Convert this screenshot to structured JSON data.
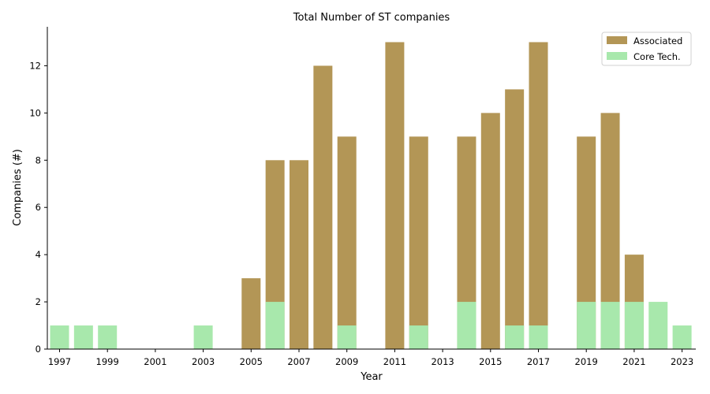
{
  "chart_data": {
    "type": "bar",
    "title": "Total Number of ST companies",
    "xlabel": "Year",
    "ylabel": "Companies (#)",
    "ylim": [
      0,
      13.65
    ],
    "yticks": [
      0,
      2,
      4,
      6,
      8,
      10,
      12
    ],
    "xticks": [
      1997,
      1999,
      2001,
      2003,
      2005,
      2007,
      2009,
      2011,
      2013,
      2015,
      2017,
      2019,
      2021,
      2023
    ],
    "legend_position": "top-right",
    "categories": [
      1997,
      1998,
      1999,
      2000,
      2001,
      2002,
      2003,
      2004,
      2005,
      2006,
      2007,
      2008,
      2009,
      2010,
      2011,
      2012,
      2013,
      2014,
      2015,
      2016,
      2017,
      2018,
      2019,
      2020,
      2021,
      2022,
      2023
    ],
    "series": [
      {
        "name": "Associated",
        "color": "#b39656",
        "values": [
          0,
          0,
          0,
          0,
          0,
          0,
          0,
          0,
          3,
          8,
          8,
          12,
          9,
          0,
          13,
          9,
          0,
          9,
          10,
          11,
          13,
          0,
          9,
          10,
          4,
          0,
          0
        ]
      },
      {
        "name": "Core Tech.",
        "color": "#a8e8ac",
        "values": [
          1,
          1,
          1,
          0,
          0,
          0,
          1,
          0,
          0,
          2,
          0,
          0,
          1,
          0,
          0,
          1,
          0,
          2,
          0,
          1,
          1,
          0,
          2,
          2,
          2,
          2,
          1
        ]
      }
    ]
  }
}
